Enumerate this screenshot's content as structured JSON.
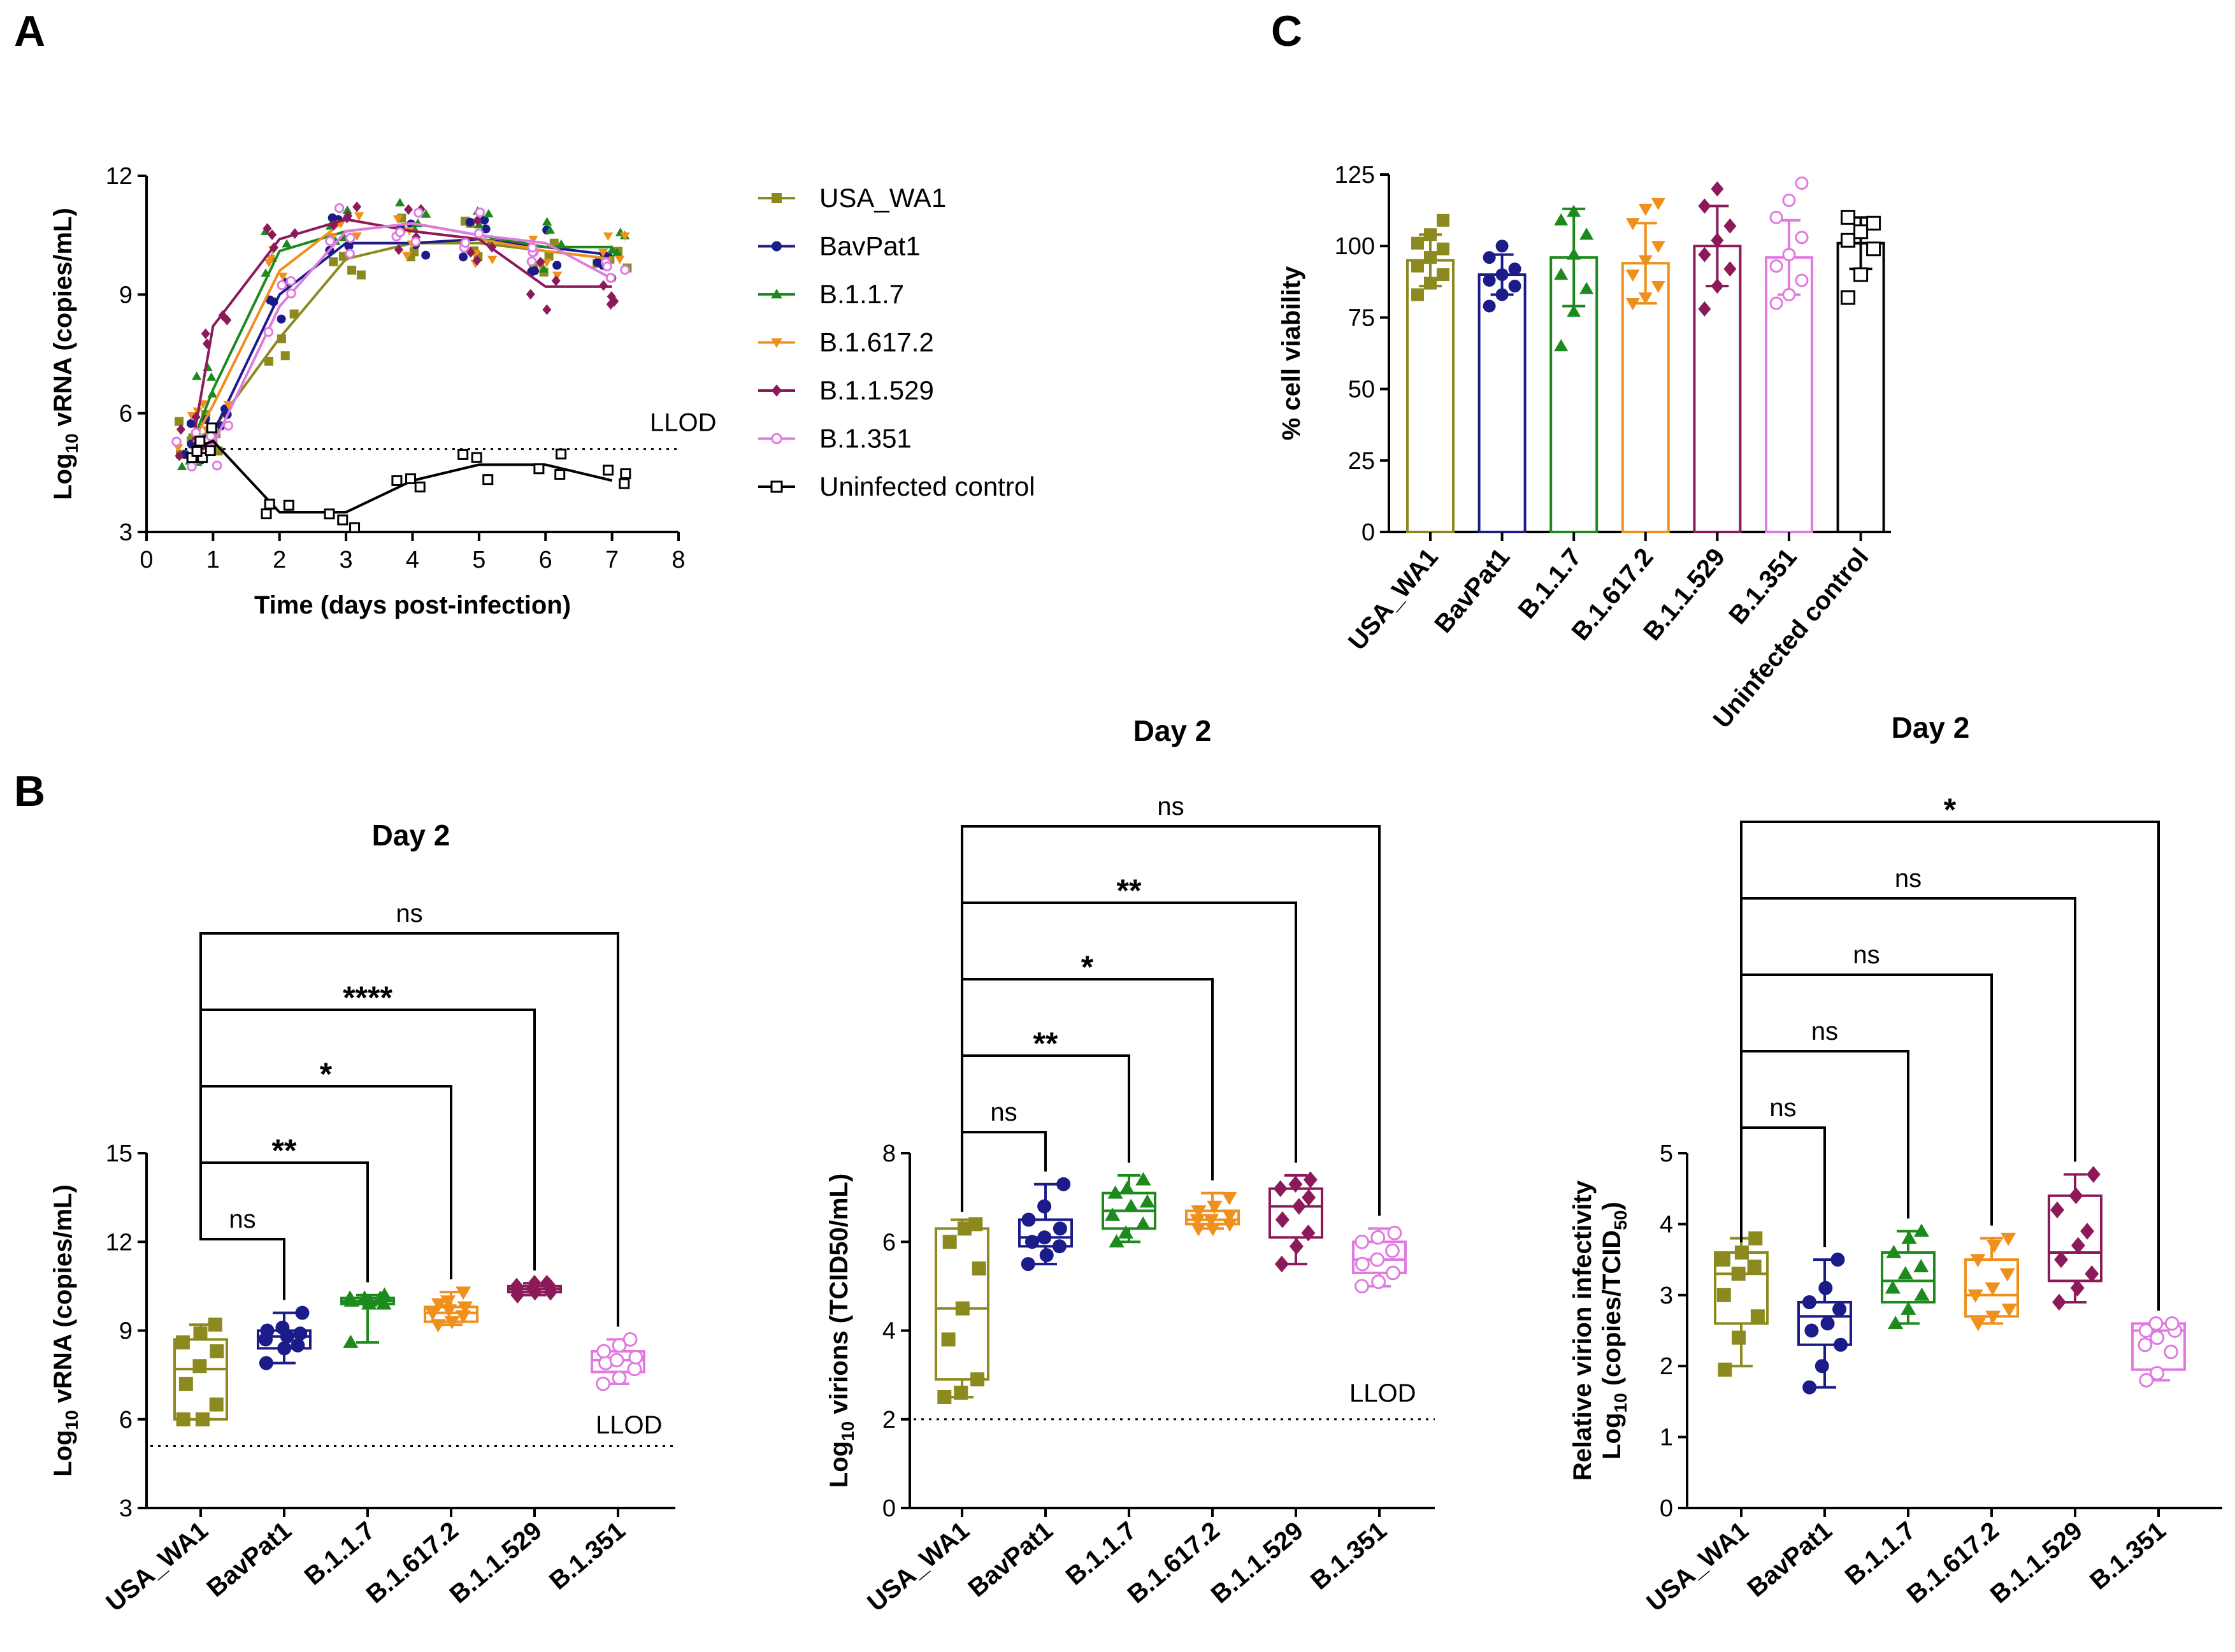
{
  "figure": {
    "panel_letters": [
      "A",
      "B",
      "C"
    ]
  },
  "colors": {
    "USA_WA1": "#8c8a1f",
    "BavPat1": "#1b1b8a",
    "B.1.1.7": "#1d8a1d",
    "B.1.617.2": "#f0901c",
    "B.1.1.529": "#8c1a5a",
    "B.1.351": "#e07ae0",
    "Uninfected control": "#000000"
  },
  "chart_data": [
    {
      "id": "A",
      "type": "line",
      "title": "",
      "xlabel": "Time (days post-infection)",
      "ylabel_main": "Log",
      "ylabel_sub": "10",
      "ylabel_rest": " vRNA (copies/mL)",
      "xlim": [
        0,
        8
      ],
      "ylim": [
        3,
        12
      ],
      "xticks": [
        0,
        1,
        2,
        3,
        4,
        5,
        6,
        7,
        8
      ],
      "yticks": [
        3,
        6,
        9,
        12
      ],
      "llod": {
        "value": 5.1,
        "label": "LLOD"
      },
      "legend_position": "right",
      "series": [
        {
          "name": "USA_WA1",
          "marker": "square",
          "x": [
            0.7,
            1,
            2,
            3,
            4,
            5,
            6,
            7
          ],
          "y": [
            5.3,
            5.6,
            7.9,
            9.9,
            10.3,
            10.3,
            10.1,
            9.9
          ]
        },
        {
          "name": "BavPat1",
          "marker": "circle",
          "x": [
            0.7,
            1,
            2,
            3,
            4,
            5,
            6,
            7
          ],
          "y": [
            5.3,
            5.5,
            9.0,
            10.3,
            10.3,
            10.4,
            10.2,
            10.0
          ]
        },
        {
          "name": "B.1.1.7",
          "marker": "triangle",
          "x": [
            0.7,
            1,
            2,
            3,
            4,
            5,
            6,
            7
          ],
          "y": [
            5.3,
            6.6,
            10.1,
            10.6,
            10.8,
            10.5,
            10.2,
            10.2
          ]
        },
        {
          "name": "B.1.617.2",
          "marker": "triangle-down",
          "x": [
            0.7,
            1,
            2,
            3,
            4,
            5,
            6,
            7
          ],
          "y": [
            5.3,
            6.2,
            9.6,
            10.9,
            10.6,
            10.4,
            10.1,
            9.9
          ]
        },
        {
          "name": "B.1.1.529",
          "marker": "diamond",
          "x": [
            0.7,
            1,
            2,
            3,
            4,
            5,
            6,
            7
          ],
          "y": [
            5.3,
            8.2,
            10.4,
            10.9,
            10.6,
            10.4,
            9.2,
            9.2
          ]
        },
        {
          "name": "B.1.351",
          "marker": "circle-open",
          "x": [
            0.7,
            1,
            2,
            3,
            4,
            5,
            6,
            7
          ],
          "y": [
            5.3,
            5.2,
            8.7,
            10.6,
            10.8,
            10.5,
            10.3,
            9.4
          ]
        },
        {
          "name": "Uninfected control",
          "marker": "square-open",
          "x": [
            0.7,
            1,
            2,
            3,
            4,
            5,
            6,
            7
          ],
          "y": [
            5.1,
            5.3,
            3.5,
            3.5,
            4.3,
            4.7,
            4.7,
            4.3
          ]
        }
      ]
    },
    {
      "id": "B1",
      "type": "box",
      "title": "Day 2",
      "ylabel_main": "Log",
      "ylabel_sub": "10",
      "ylabel_rest": " vRNA (copies/mL)",
      "ylim": [
        3,
        15
      ],
      "yticks": [
        3,
        6,
        9,
        12,
        15
      ],
      "llod": {
        "value": 5.1,
        "label": "LLOD"
      },
      "categories": [
        "USA_WA1",
        "BavPat1",
        "B.1.1.7",
        "B.1.617.2",
        "B.1.1.529",
        "B.1.351"
      ],
      "boxes": [
        {
          "min": 6.0,
          "q1": 6.0,
          "median": 7.7,
          "q3": 8.7,
          "max": 9.2,
          "points": [
            6.0,
            6.0,
            6.5,
            7.2,
            7.8,
            8.3,
            8.6,
            8.9,
            9.2
          ]
        },
        {
          "min": 7.9,
          "q1": 8.4,
          "median": 8.8,
          "q3": 9.0,
          "max": 9.6,
          "points": [
            7.9,
            8.4,
            8.5,
            8.7,
            8.8,
            8.9,
            9.0,
            9.1,
            9.6
          ]
        },
        {
          "min": 8.6,
          "q1": 9.9,
          "median": 10.0,
          "q3": 10.1,
          "max": 10.2,
          "points": [
            8.6,
            9.9,
            9.9,
            10.0,
            10.0,
            10.1,
            10.1,
            10.1,
            10.2
          ]
        },
        {
          "min": 9.2,
          "q1": 9.3,
          "median": 9.6,
          "q3": 9.8,
          "max": 10.3,
          "points": [
            9.2,
            9.3,
            9.5,
            9.6,
            9.7,
            9.8,
            9.9,
            10.0,
            10.3
          ]
        },
        {
          "min": 10.2,
          "q1": 10.3,
          "median": 10.4,
          "q3": 10.5,
          "max": 10.6,
          "points": [
            10.2,
            10.3,
            10.3,
            10.4,
            10.4,
            10.5,
            10.5,
            10.6,
            10.6
          ]
        },
        {
          "min": 7.2,
          "q1": 7.6,
          "median": 8.0,
          "q3": 8.3,
          "max": 8.7,
          "points": [
            7.2,
            7.4,
            7.7,
            7.9,
            8.0,
            8.1,
            8.3,
            8.5,
            8.7
          ]
        }
      ],
      "comparisons": [
        {
          "to": 1,
          "label": "ns",
          "level": 0
        },
        {
          "to": 2,
          "label": "**",
          "level": 1
        },
        {
          "to": 3,
          "label": "*",
          "level": 2
        },
        {
          "to": 4,
          "label": "****",
          "level": 3
        },
        {
          "to": 5,
          "label": "ns",
          "level": 4
        }
      ]
    },
    {
      "id": "B2",
      "type": "box",
      "title": "Day 2",
      "ylabel_main": "Log",
      "ylabel_sub": "10",
      "ylabel_rest": " virions (TCID50/mL)",
      "ylim": [
        0,
        8
      ],
      "yticks": [
        0,
        2,
        4,
        6,
        8
      ],
      "llod": {
        "value": 2,
        "label": "LLOD"
      },
      "categories": [
        "USA_WA1",
        "BavPat1",
        "B.1.1.7",
        "B.1.617.2",
        "B.1.1.529",
        "B.1.351"
      ],
      "boxes": [
        {
          "min": 2.5,
          "q1": 2.9,
          "median": 4.5,
          "q3": 6.3,
          "max": 6.5,
          "points": [
            2.5,
            2.6,
            2.9,
            3.8,
            4.5,
            5.4,
            6.0,
            6.3,
            6.4
          ]
        },
        {
          "min": 5.5,
          "q1": 5.9,
          "median": 6.1,
          "q3": 6.5,
          "max": 7.3,
          "points": [
            5.5,
            5.7,
            5.9,
            6.0,
            6.1,
            6.3,
            6.5,
            6.8,
            7.3
          ]
        },
        {
          "min": 6.0,
          "q1": 6.3,
          "median": 6.7,
          "q3": 7.1,
          "max": 7.5,
          "points": [
            6.0,
            6.2,
            6.4,
            6.6,
            6.8,
            6.9,
            7.1,
            7.2,
            7.4
          ]
        },
        {
          "min": 6.3,
          "q1": 6.4,
          "median": 6.5,
          "q3": 6.7,
          "max": 7.1,
          "points": [
            6.3,
            6.3,
            6.4,
            6.5,
            6.5,
            6.6,
            6.7,
            6.8,
            7.0
          ]
        },
        {
          "min": 5.5,
          "q1": 6.1,
          "median": 6.8,
          "q3": 7.2,
          "max": 7.5,
          "points": [
            5.5,
            5.9,
            6.2,
            6.5,
            6.8,
            7.0,
            7.2,
            7.3,
            7.4
          ]
        },
        {
          "min": 5.0,
          "q1": 5.3,
          "median": 5.6,
          "q3": 6.0,
          "max": 6.3,
          "points": [
            5.0,
            5.1,
            5.3,
            5.5,
            5.6,
            5.8,
            6.0,
            6.1,
            6.2
          ]
        }
      ],
      "comparisons": [
        {
          "to": 1,
          "label": "ns",
          "level": 0
        },
        {
          "to": 2,
          "label": "**",
          "level": 1
        },
        {
          "to": 3,
          "label": "*",
          "level": 2
        },
        {
          "to": 4,
          "label": "**",
          "level": 3
        },
        {
          "to": 5,
          "label": "ns",
          "level": 4
        }
      ]
    },
    {
      "id": "B3",
      "type": "box",
      "title": "Day 2",
      "ylabel_line1": "Relative virion infectivity",
      "ylabel_main": "Log",
      "ylabel_sub": "10",
      "ylabel_rest": " (copies/TCID",
      "ylabel_sub2": "50",
      "ylabel_end": ")",
      "ylim": [
        0,
        5
      ],
      "yticks": [
        0,
        1,
        2,
        3,
        4,
        5
      ],
      "categories": [
        "USA_WA1",
        "BavPat1",
        "B.1.1.7",
        "B.1.617.2",
        "B.1.1.529",
        "B.1.351"
      ],
      "boxes": [
        {
          "min": 2.0,
          "q1": 2.6,
          "median": 3.3,
          "q3": 3.6,
          "max": 3.8,
          "points": [
            1.95,
            2.4,
            2.7,
            3.0,
            3.3,
            3.4,
            3.5,
            3.6,
            3.8
          ]
        },
        {
          "min": 1.7,
          "q1": 2.3,
          "median": 2.7,
          "q3": 2.9,
          "max": 3.5,
          "points": [
            1.7,
            2.0,
            2.3,
            2.5,
            2.6,
            2.8,
            2.9,
            3.1,
            3.5
          ]
        },
        {
          "min": 2.6,
          "q1": 2.9,
          "median": 3.2,
          "q3": 3.6,
          "max": 3.9,
          "points": [
            2.6,
            2.8,
            3.0,
            3.1,
            3.3,
            3.4,
            3.6,
            3.8,
            3.9
          ]
        },
        {
          "min": 2.6,
          "q1": 2.7,
          "median": 3.0,
          "q3": 3.5,
          "max": 3.8,
          "points": [
            2.6,
            2.7,
            2.8,
            3.0,
            3.1,
            3.3,
            3.5,
            3.7,
            3.8
          ]
        },
        {
          "min": 2.9,
          "q1": 3.2,
          "median": 3.6,
          "q3": 4.4,
          "max": 4.7,
          "points": [
            2.9,
            3.1,
            3.3,
            3.5,
            3.7,
            3.9,
            4.2,
            4.4,
            4.7
          ]
        },
        {
          "min": 1.8,
          "q1": 1.95,
          "median": 2.5,
          "q3": 2.6,
          "max": 2.6,
          "points": [
            1.8,
            1.9,
            2.2,
            2.3,
            2.4,
            2.5,
            2.5,
            2.6,
            2.6
          ]
        }
      ],
      "comparisons": [
        {
          "to": 1,
          "label": "ns",
          "level": 0
        },
        {
          "to": 2,
          "label": "ns",
          "level": 1
        },
        {
          "to": 3,
          "label": "ns",
          "level": 2
        },
        {
          "to": 4,
          "label": "ns",
          "level": 3
        },
        {
          "to": 5,
          "label": "*",
          "level": 4
        }
      ]
    },
    {
      "id": "C",
      "type": "bar",
      "title": "",
      "ylabel": "% cell viability",
      "ylim": [
        0,
        125
      ],
      "yticks": [
        0,
        25,
        50,
        75,
        100,
        125
      ],
      "categories": [
        "USA_WA1",
        "BavPat1",
        "B.1.1.7",
        "B.1.617.2",
        "B.1.1.529",
        "B.1.351",
        "Uninfected control"
      ],
      "values": [
        95,
        90,
        96,
        94,
        100,
        96,
        101
      ],
      "sd": [
        9,
        7,
        17,
        14,
        14,
        13,
        9
      ],
      "points": [
        [
          83,
          87,
          90,
          93,
          96,
          99,
          101,
          104,
          109
        ],
        [
          79,
          83,
          86,
          88,
          90,
          92,
          96,
          100
        ],
        [
          65,
          77,
          85,
          90,
          97,
          104,
          109,
          112
        ],
        [
          80,
          82,
          86,
          90,
          95,
          100,
          108,
          113,
          115
        ],
        [
          78,
          86,
          92,
          97,
          102,
          107,
          114,
          120
        ],
        [
          80,
          83,
          88,
          93,
          97,
          103,
          110,
          116,
          122
        ],
        [
          82,
          90,
          99,
          102,
          105,
          108,
          110
        ]
      ]
    }
  ]
}
